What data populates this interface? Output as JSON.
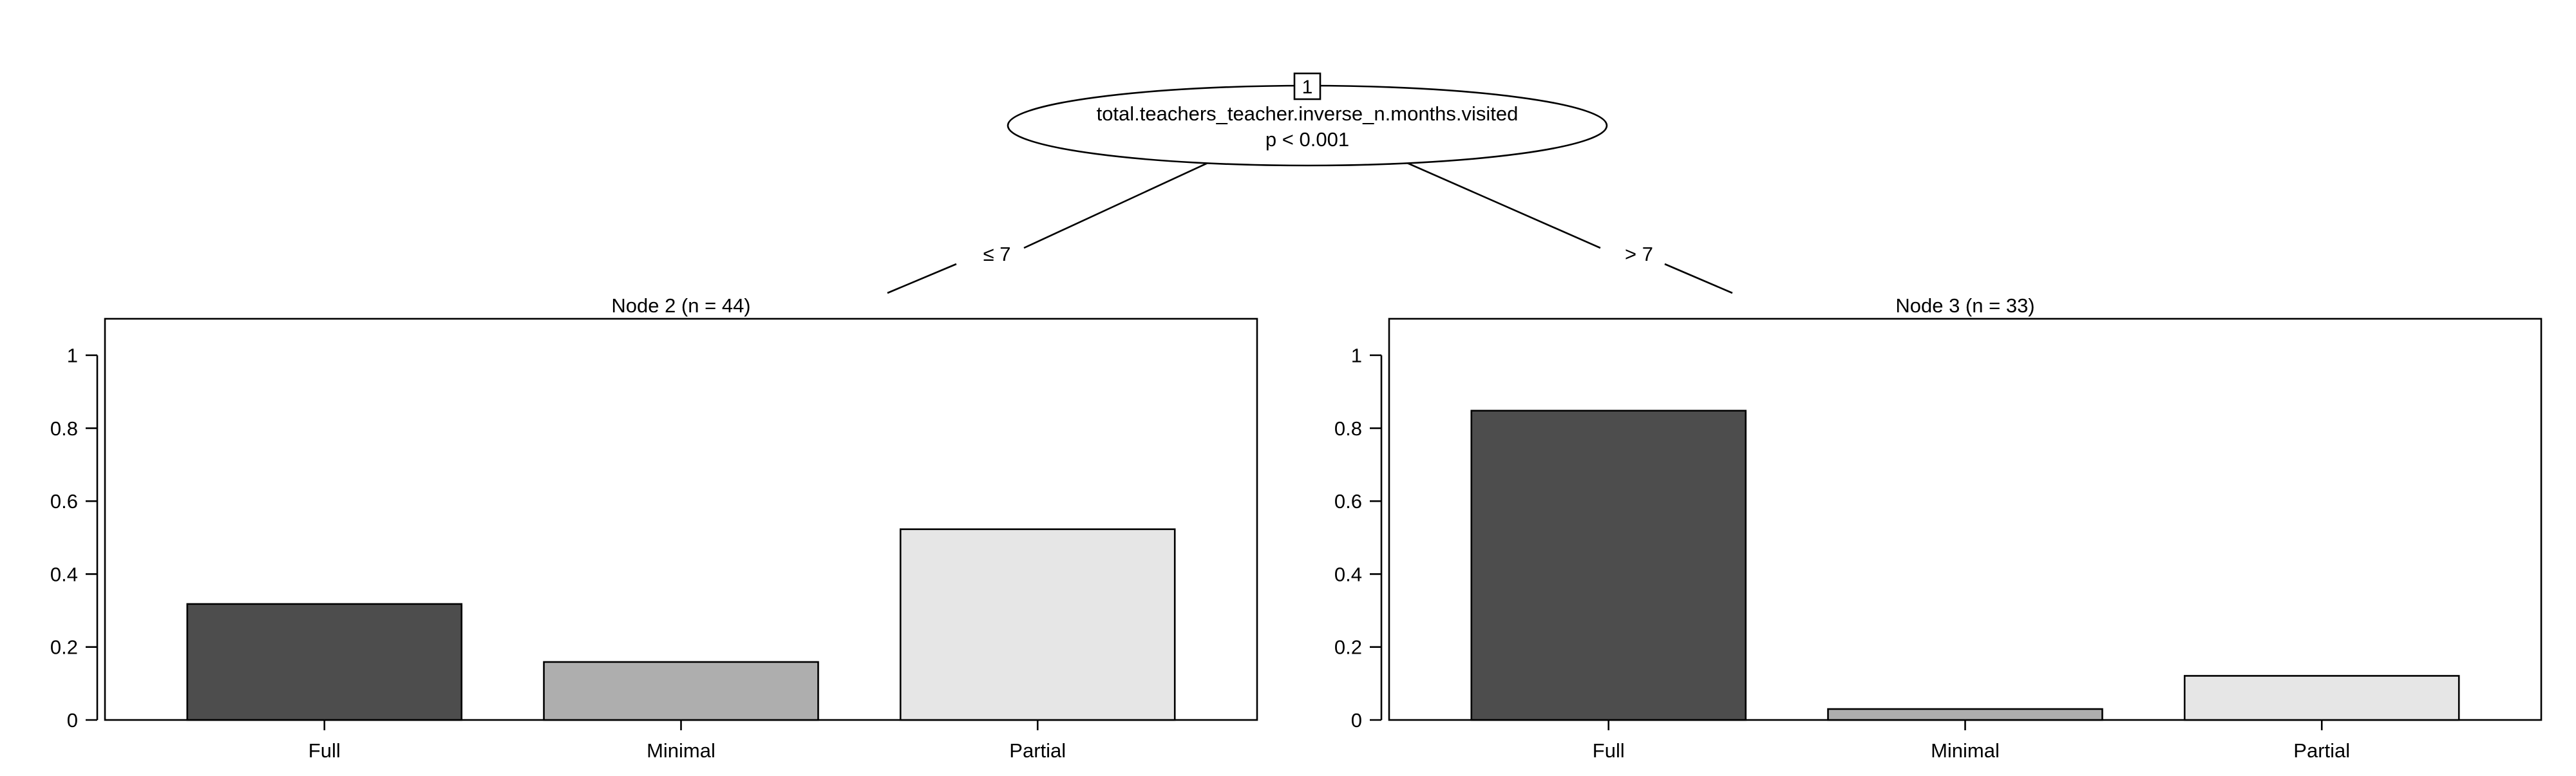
{
  "tree": {
    "root": {
      "id_label": "1",
      "variable": "total.teachers_teacher.inverse_n.months.visited",
      "p_value": "p < 0.001"
    },
    "edges": [
      {
        "label": "≤ 7"
      },
      {
        "label": "> 7"
      }
    ]
  },
  "chart_data": [
    {
      "type": "bar",
      "title": "Node 2 (n = 44)",
      "categories": [
        "Full",
        "Minimal",
        "Partial"
      ],
      "values": [
        0.318,
        0.159,
        0.523
      ],
      "colors": [
        "#4d4d4d",
        "#aeaeae",
        "#e6e6e6"
      ],
      "ylim": [
        0,
        1.1
      ],
      "yticks": [
        0,
        0.2,
        0.4,
        0.6,
        0.8,
        1
      ],
      "ytick_labels": [
        "0",
        "0.2",
        "0.4",
        "0.6",
        "0.8",
        "1"
      ],
      "xlabel": "",
      "ylabel": ""
    },
    {
      "type": "bar",
      "title": "Node 3 (n = 33)",
      "categories": [
        "Full",
        "Minimal",
        "Partial"
      ],
      "values": [
        0.848,
        0.03,
        0.121
      ],
      "colors": [
        "#4d4d4d",
        "#aeaeae",
        "#e6e6e6"
      ],
      "ylim": [
        0,
        1.1
      ],
      "yticks": [
        0,
        0.2,
        0.4,
        0.6,
        0.8,
        1
      ],
      "ytick_labels": [
        "0",
        "0.2",
        "0.4",
        "0.6",
        "0.8",
        "1"
      ],
      "xlabel": "",
      "ylabel": ""
    }
  ]
}
